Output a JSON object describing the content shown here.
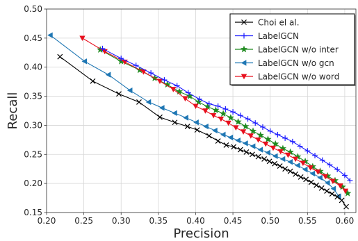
{
  "chart_data": {
    "type": "line",
    "title": "",
    "xlabel": "Precision",
    "ylabel": "Recall",
    "xlim": [
      0.2,
      0.615
    ],
    "ylim": [
      0.15,
      0.5
    ],
    "xticks": [
      "0.20",
      "0.25",
      "0.30",
      "0.35",
      "0.40",
      "0.45",
      "0.50",
      "0.55",
      "0.60"
    ],
    "yticks": [
      "0.15",
      "0.20",
      "0.25",
      "0.30",
      "0.35",
      "0.40",
      "0.45",
      "0.50"
    ],
    "grid": true,
    "legend_position": "top-right",
    "series": [
      {
        "name": "Choi el al.",
        "color": "#000000",
        "marker": "x",
        "x": [
          0.218,
          0.262,
          0.297,
          0.324,
          0.352,
          0.372,
          0.389,
          0.402,
          0.418,
          0.43,
          0.441,
          0.451,
          0.46,
          0.468,
          0.476,
          0.484,
          0.492,
          0.499,
          0.506,
          0.513,
          0.52,
          0.527,
          0.534,
          0.541,
          0.548,
          0.555,
          0.562,
          0.569,
          0.576,
          0.583,
          0.59,
          0.596,
          0.602
        ],
        "y": [
          0.418,
          0.376,
          0.354,
          0.34,
          0.314,
          0.305,
          0.298,
          0.292,
          0.282,
          0.273,
          0.266,
          0.263,
          0.258,
          0.254,
          0.25,
          0.246,
          0.242,
          0.238,
          0.234,
          0.23,
          0.225,
          0.221,
          0.216,
          0.211,
          0.207,
          0.202,
          0.197,
          0.192,
          0.187,
          0.182,
          0.177,
          0.171,
          0.16
        ]
      },
      {
        "name": "LabelGCN",
        "color": "#1a1aff",
        "marker": "+",
        "x": [
          0.275,
          0.3,
          0.32,
          0.34,
          0.358,
          0.375,
          0.39,
          0.405,
          0.418,
          0.43,
          0.44,
          0.45,
          0.46,
          0.47,
          0.48,
          0.49,
          0.5,
          0.51,
          0.52,
          0.53,
          0.54,
          0.55,
          0.56,
          0.57,
          0.58,
          0.59,
          0.6,
          0.607
        ],
        "y": [
          0.432,
          0.415,
          0.403,
          0.39,
          0.378,
          0.368,
          0.356,
          0.345,
          0.337,
          0.333,
          0.328,
          0.323,
          0.317,
          0.311,
          0.304,
          0.297,
          0.29,
          0.284,
          0.278,
          0.272,
          0.264,
          0.256,
          0.248,
          0.24,
          0.232,
          0.224,
          0.214,
          0.205
        ]
      },
      {
        "name": "LabelGCN w/o inter",
        "color": "#1f8a1f",
        "marker": "star",
        "x": [
          0.272,
          0.3,
          0.325,
          0.345,
          0.362,
          0.378,
          0.392,
          0.404,
          0.416,
          0.427,
          0.437,
          0.447,
          0.457,
          0.467,
          0.477,
          0.487,
          0.497,
          0.507,
          0.517,
          0.527,
          0.537,
          0.547,
          0.557,
          0.567,
          0.577,
          0.587,
          0.597,
          0.604
        ],
        "y": [
          0.43,
          0.41,
          0.395,
          0.381,
          0.37,
          0.358,
          0.35,
          0.34,
          0.332,
          0.326,
          0.32,
          0.313,
          0.306,
          0.298,
          0.29,
          0.283,
          0.276,
          0.268,
          0.26,
          0.254,
          0.246,
          0.238,
          0.229,
          0.221,
          0.213,
          0.205,
          0.194,
          0.183
        ]
      },
      {
        "name": "LabelGCN w/o gcn",
        "color": "#1f77b4",
        "marker": "triangle-left",
        "x": [
          0.205,
          0.251,
          0.283,
          0.312,
          0.337,
          0.355,
          0.372,
          0.387,
          0.401,
          0.414,
          0.426,
          0.437,
          0.447,
          0.457,
          0.467,
          0.477,
          0.487,
          0.497,
          0.507,
          0.517,
          0.527,
          0.537,
          0.547,
          0.557,
          0.567,
          0.577,
          0.585,
          0.592
        ],
        "y": [
          0.455,
          0.41,
          0.387,
          0.36,
          0.34,
          0.33,
          0.321,
          0.313,
          0.305,
          0.298,
          0.291,
          0.284,
          0.279,
          0.274,
          0.269,
          0.264,
          0.258,
          0.253,
          0.247,
          0.242,
          0.237,
          0.231,
          0.224,
          0.217,
          0.21,
          0.201,
          0.191,
          0.178
        ]
      },
      {
        "name": "LabelGCN w/o word",
        "color": "#e8101e",
        "marker": "triangle-down",
        "x": [
          0.248,
          0.278,
          0.305,
          0.33,
          0.352,
          0.37,
          0.386,
          0.4,
          0.413,
          0.424,
          0.434,
          0.444,
          0.454,
          0.464,
          0.474,
          0.484,
          0.494,
          0.504,
          0.514,
          0.524,
          0.534,
          0.544,
          0.554,
          0.564,
          0.574,
          0.584,
          0.594,
          0.601
        ],
        "y": [
          0.45,
          0.427,
          0.409,
          0.392,
          0.376,
          0.362,
          0.346,
          0.333,
          0.325,
          0.317,
          0.311,
          0.304,
          0.296,
          0.289,
          0.282,
          0.275,
          0.268,
          0.261,
          0.255,
          0.249,
          0.242,
          0.235,
          0.227,
          0.22,
          0.212,
          0.204,
          0.196,
          0.187
        ]
      }
    ]
  }
}
